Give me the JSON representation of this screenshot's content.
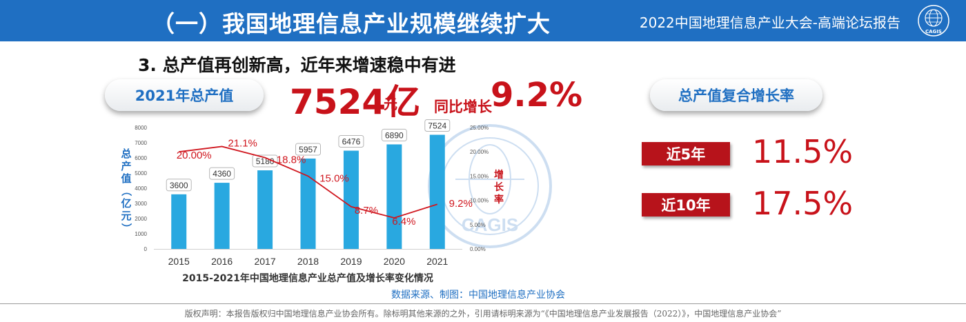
{
  "header": {
    "title": "（一）我国地理信息产业规模继续扩大",
    "subtitle": "2022中国地理信息产业大会-高端论坛报告",
    "logo_text": "CAGIS"
  },
  "section_title": "3. 总产值再创新高，近年来增速稳中有进",
  "total_pill_label": "2021年总产值",
  "total_value": "7524亿",
  "total_unit": "元",
  "yoy_label": "同比增长",
  "yoy_value": "9.2%",
  "cagr_pill_label": "总产值复合增长率",
  "cagr": [
    {
      "label": "近5年",
      "value": "11.5%"
    },
    {
      "label": "近10年",
      "value": "17.5%"
    }
  ],
  "watermark_text": "CAGIS",
  "source_note": "数据来源、制图：中国地理信息产业协会",
  "copyright": "版权声明：本报告版权归中国地理信息产业协会所有。除标明其他来源的之外，引用请标明来源为“《中国地理信息产业发展报告（2022）》，中国地理信息产业协会”",
  "colors": {
    "header_blue": "#1f6fc2",
    "accent_red": "#c8121a",
    "bar_blue": "#29a8e0",
    "line_red": "#d0161e"
  },
  "chart_data": {
    "type": "bar",
    "title": "2015-2021年中国地理信息产业总产值及增长率变化情况",
    "categories": [
      "2015",
      "2016",
      "2017",
      "2018",
      "2019",
      "2020",
      "2021"
    ],
    "series": [
      {
        "name": "总产值（亿元）",
        "type": "bar",
        "axis": "left",
        "values": [
          3600,
          4360,
          5180,
          5957,
          6476,
          6890,
          7524
        ],
        "labels": [
          "3600",
          "4360",
          "5180",
          "5957",
          "6476",
          "6890",
          "7524"
        ]
      },
      {
        "name": "增长率",
        "type": "line",
        "axis": "right",
        "values": [
          20.0,
          21.1,
          18.8,
          15.0,
          8.7,
          6.4,
          9.2
        ],
        "labels": [
          "20.00%",
          "21.1%",
          "18.8%",
          "15.0%",
          "8.7%",
          "6.4%",
          "9.2%"
        ]
      }
    ],
    "ylabel_left": "总产值（亿元）",
    "ylabel_right": "增长率",
    "ylim_left": [
      0,
      8000
    ],
    "yticks_left": [
      "0",
      "1000",
      "2000",
      "3000",
      "4000",
      "5000",
      "6000",
      "7000",
      "8000"
    ],
    "ylim_right": [
      0,
      25
    ],
    "yticks_right": [
      "0.00%",
      "5.00%",
      "10.00%",
      "15.00%",
      "20.00%",
      "25.00%"
    ],
    "grid": false,
    "legend": "none"
  }
}
